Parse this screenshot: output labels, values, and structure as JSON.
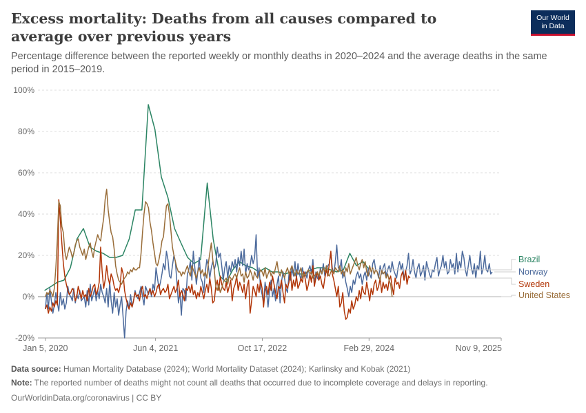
{
  "header": {
    "title": "Excess mortality: Deaths from all causes compared to average over previous years",
    "subtitle": "Percentage difference between the reported weekly or monthly deaths in 2020–2024 and the average deaths in the same period in 2015–2019.",
    "logo_line1": "Our World",
    "logo_line2": "in Data"
  },
  "footer": {
    "source_label": "Data source:",
    "source_text": "Human Mortality Database (2024); World Mortality Dataset (2024); Karlinsky and Kobak (2021)",
    "note_label": "Note:",
    "note_text": "The reported number of deaths might not count all deaths that occurred due to incomplete coverage and delays in reporting.",
    "credit": "OurWorldinData.org/coronavirus | CC BY"
  },
  "colors": {
    "Brazil": "#2b8463",
    "Norway": "#4c6a9c",
    "Sweden": "#b13507",
    "United States": "#996d39",
    "grid": "#dddddd",
    "zero_line": "#9a9a9a"
  },
  "chart_data": {
    "type": "line",
    "xlabel": "",
    "ylabel": "",
    "y_tick_labels": [
      "-20%",
      "0%",
      "20%",
      "40%",
      "60%",
      "80%",
      "100%"
    ],
    "y_ticks": [
      -20,
      0,
      20,
      40,
      60,
      80,
      100
    ],
    "ylim": [
      -20,
      100
    ],
    "x_tick_labels": [
      "Jan 5, 2020",
      "Jun 4, 2021",
      "Oct 17, 2022",
      "Feb 29, 2024",
      "Nov 9, 2025"
    ],
    "x_ticks": [
      "2020-01-05",
      "2021-06-04",
      "2022-10-17",
      "2024-02-29",
      "2025-11-09"
    ],
    "xlim": [
      "2019-12-01",
      "2025-11-09"
    ],
    "grid": "horizontal dashed",
    "legend": "right, labels at line ends",
    "series": [
      {
        "name": "Brazil",
        "points": [
          [
            "2020-01-01",
            3
          ],
          [
            "2020-02-01",
            5
          ],
          [
            "2020-03-01",
            7
          ],
          [
            "2020-04-01",
            8
          ],
          [
            "2020-05-01",
            14
          ],
          [
            "2020-06-01",
            28
          ],
          [
            "2020-07-01",
            33
          ],
          [
            "2020-08-01",
            24
          ],
          [
            "2020-09-01",
            22
          ],
          [
            "2020-10-01",
            21
          ],
          [
            "2020-11-01",
            19
          ],
          [
            "2020-12-01",
            19
          ],
          [
            "2021-01-01",
            20
          ],
          [
            "2021-02-01",
            28
          ],
          [
            "2021-03-01",
            42
          ],
          [
            "2021-04-01",
            42
          ],
          [
            "2021-05-01",
            93
          ],
          [
            "2021-06-01",
            81
          ],
          [
            "2021-07-01",
            58
          ],
          [
            "2021-08-01",
            48
          ],
          [
            "2021-09-01",
            33
          ],
          [
            "2021-10-01",
            26
          ],
          [
            "2021-11-01",
            19
          ],
          [
            "2021-12-01",
            16
          ],
          [
            "2022-01-01",
            18
          ],
          [
            "2022-02-01",
            55
          ],
          [
            "2022-03-01",
            28
          ],
          [
            "2022-04-01",
            10
          ],
          [
            "2022-05-01",
            7
          ],
          [
            "2022-06-01",
            13
          ],
          [
            "2022-07-01",
            17
          ],
          [
            "2022-08-01",
            15
          ],
          [
            "2022-09-01",
            14
          ],
          [
            "2022-10-01",
            12
          ],
          [
            "2022-11-01",
            14
          ],
          [
            "2022-12-01",
            12
          ],
          [
            "2023-01-01",
            12
          ],
          [
            "2023-02-01",
            11
          ],
          [
            "2023-03-01",
            12
          ],
          [
            "2023-04-01",
            11
          ],
          [
            "2023-05-01",
            11
          ],
          [
            "2023-06-01",
            13
          ],
          [
            "2023-07-01",
            14
          ],
          [
            "2023-08-01",
            14
          ],
          [
            "2023-09-01",
            13
          ],
          [
            "2023-10-01",
            12
          ],
          [
            "2023-11-01",
            13
          ],
          [
            "2023-12-01",
            21
          ],
          [
            "2024-01-01",
            15
          ],
          [
            "2024-02-01",
            17
          ],
          [
            "2024-03-01",
            13
          ]
        ]
      },
      {
        "name": "Norway",
        "values": [
          -6,
          2,
          -6,
          4,
          -2,
          -8,
          -4,
          2,
          -3,
          -7,
          2,
          -4,
          -1,
          -6,
          -3,
          5,
          1,
          0,
          -2,
          4,
          -3,
          1,
          -1,
          3,
          -2,
          -1,
          0,
          -5,
          3,
          -4,
          6,
          -2,
          1,
          4,
          -2,
          3,
          -1,
          6,
          2,
          0,
          -3,
          4,
          -5,
          7,
          -2,
          -8,
          2,
          -5,
          -1,
          -9,
          -4,
          0,
          -10,
          -20,
          -7,
          -2,
          -6,
          1,
          -5,
          -2,
          3,
          0,
          -1,
          2,
          5,
          0,
          -4,
          5,
          3,
          1,
          4,
          0,
          6,
          3,
          14,
          9,
          4,
          7,
          11,
          16,
          13,
          22,
          18,
          10,
          9,
          15,
          20,
          17,
          7,
          -3,
          2,
          -9,
          4,
          3,
          -2,
          11,
          13,
          17,
          8,
          22,
          14,
          6,
          12,
          19,
          9,
          7,
          2,
          12,
          18,
          15,
          9,
          14,
          17,
          13,
          16,
          24,
          19,
          21,
          15,
          8,
          14,
          17,
          9,
          15,
          12,
          17,
          14,
          18,
          12,
          19,
          15,
          22,
          15,
          23,
          11,
          16,
          13,
          15,
          20,
          16,
          19,
          30,
          9,
          14,
          4,
          1,
          -3,
          7,
          2,
          -5,
          3,
          8,
          0,
          4,
          -2,
          6,
          10,
          -3,
          7,
          12,
          9,
          4,
          2,
          11,
          8,
          14,
          10,
          17,
          9,
          16,
          11,
          8,
          14,
          10,
          12,
          9,
          13,
          15,
          11,
          18,
          6,
          12,
          9,
          8,
          14,
          11,
          16,
          10,
          13,
          15,
          16,
          21,
          14,
          11,
          17,
          25,
          14,
          13,
          18,
          9,
          12,
          7,
          4,
          0,
          5,
          2,
          8,
          6,
          10,
          12,
          9,
          11,
          6,
          10,
          12,
          8,
          14,
          11,
          9,
          16,
          18,
          13,
          12,
          9,
          15,
          11,
          14,
          16,
          10,
          13,
          15,
          12,
          17,
          13,
          11,
          9,
          14,
          17,
          13,
          16,
          8,
          12,
          15,
          21,
          11,
          13,
          18,
          12,
          9,
          14,
          16,
          10,
          12,
          15,
          8,
          17,
          14,
          11,
          9,
          13,
          12,
          16,
          19,
          10,
          13,
          15,
          20,
          14,
          17,
          11,
          12,
          18,
          14,
          16,
          11,
          21,
          12,
          17,
          14,
          22,
          19,
          13,
          10,
          15,
          20,
          14,
          11,
          16,
          9,
          15,
          13,
          22,
          11,
          14,
          20,
          13,
          12,
          16,
          11,
          12
        ]
      },
      {
        "name": "Sweden",
        "values": [
          -6,
          -4,
          -8,
          -5,
          -7,
          -3,
          -5,
          -2,
          -4,
          47,
          37,
          26,
          16,
          10,
          6,
          3,
          1,
          2,
          4,
          3,
          -2,
          0,
          5,
          2,
          -1,
          3,
          0,
          1,
          -2,
          4,
          0,
          2,
          5,
          6,
          1,
          3,
          7,
          24,
          12,
          4,
          8,
          15,
          9,
          6,
          11,
          9,
          5,
          3,
          4,
          2,
          5,
          14,
          11,
          3,
          -1,
          -4,
          -6,
          -3,
          -5,
          -2,
          2,
          0,
          1,
          -2,
          3,
          5,
          0,
          1,
          -1,
          2,
          4,
          1,
          3,
          0,
          2,
          5,
          6,
          1,
          3,
          4,
          2,
          3,
          6,
          -1,
          1,
          3,
          5,
          2,
          4,
          8,
          0,
          3,
          1,
          -2,
          4,
          3,
          5,
          2,
          6,
          1,
          3,
          -1,
          2,
          0,
          5,
          2,
          -1,
          3,
          6,
          2,
          9,
          4,
          -3,
          -2,
          5,
          8,
          3,
          10,
          6,
          4,
          3,
          7,
          2,
          5,
          8,
          -2,
          4,
          6,
          10,
          3,
          7,
          5,
          2,
          6,
          -1,
          5,
          8,
          -8,
          -2,
          5,
          3,
          0,
          6,
          2,
          8,
          4,
          -5,
          3,
          5,
          1,
          7,
          3,
          10,
          6,
          2,
          -1,
          5,
          4,
          8,
          2,
          -3,
          6,
          4,
          7,
          12,
          3,
          8,
          5,
          10,
          4,
          6,
          9,
          7,
          12,
          8,
          3,
          6,
          11,
          7,
          15,
          5,
          9,
          12,
          8,
          10,
          6,
          4,
          9,
          13,
          10,
          16,
          22,
          11,
          8,
          4,
          0,
          5,
          -5,
          -3,
          2,
          -7,
          -11,
          -10,
          -6,
          -8,
          -2,
          -6,
          -4,
          0,
          -2,
          3,
          -1,
          5,
          2,
          1,
          7,
          3,
          -2,
          4,
          1,
          6,
          8,
          3,
          5,
          9,
          2,
          7,
          4,
          6,
          3,
          8,
          10,
          5,
          1,
          9,
          6,
          7,
          4,
          10,
          12,
          8,
          13,
          6,
          10,
          9
        ]
      },
      {
        "name": "United States",
        "values": [
          0,
          2,
          1,
          3,
          2,
          0,
          4,
          14,
          28,
          46,
          44,
          34,
          31,
          22,
          18,
          21,
          24,
          22,
          19,
          21,
          25,
          27,
          28,
          24,
          22,
          20,
          23,
          18,
          21,
          24,
          26,
          22,
          19,
          24,
          27,
          30,
          28,
          27,
          33,
          38,
          47,
          52,
          42,
          36,
          31,
          29,
          23,
          15,
          11,
          8,
          7,
          6,
          8,
          9,
          10,
          12,
          11,
          13,
          12,
          14,
          13,
          13,
          14,
          14,
          21,
          31,
          40,
          46,
          45,
          43,
          36,
          32,
          26,
          21,
          16,
          15,
          18,
          22,
          27,
          29,
          37,
          44,
          45,
          40,
          32,
          24,
          20,
          17,
          14,
          12,
          12,
          10,
          12,
          11,
          13,
          15,
          12,
          10,
          15,
          13,
          11,
          9,
          12,
          14,
          11,
          13,
          10,
          12,
          9,
          16,
          21,
          26,
          18,
          13,
          5,
          3,
          6,
          2,
          4,
          7,
          8,
          9,
          6,
          10,
          9,
          8,
          10,
          11,
          9,
          12,
          14,
          10,
          11,
          7,
          12,
          9,
          10,
          13,
          11,
          8,
          12,
          10,
          9,
          11,
          13,
          12,
          10,
          14,
          9,
          11,
          13,
          10,
          12,
          11,
          14,
          17,
          12,
          10,
          13,
          11,
          9,
          12,
          14,
          11,
          13,
          15,
          12,
          10,
          13,
          11,
          12,
          14,
          9,
          11,
          10,
          12,
          13,
          11,
          12,
          9,
          10,
          11,
          12,
          10,
          13,
          11,
          14,
          12,
          15,
          11,
          10,
          12,
          13,
          11,
          14,
          13,
          12,
          15,
          11,
          13,
          10,
          14,
          12,
          16,
          11,
          13,
          15,
          17,
          19,
          15,
          13,
          16,
          18,
          14,
          17,
          12,
          10,
          15,
          12,
          14,
          11,
          13,
          12,
          10,
          8,
          13,
          11,
          12,
          9,
          11,
          8,
          6,
          0
        ]
      }
    ]
  }
}
